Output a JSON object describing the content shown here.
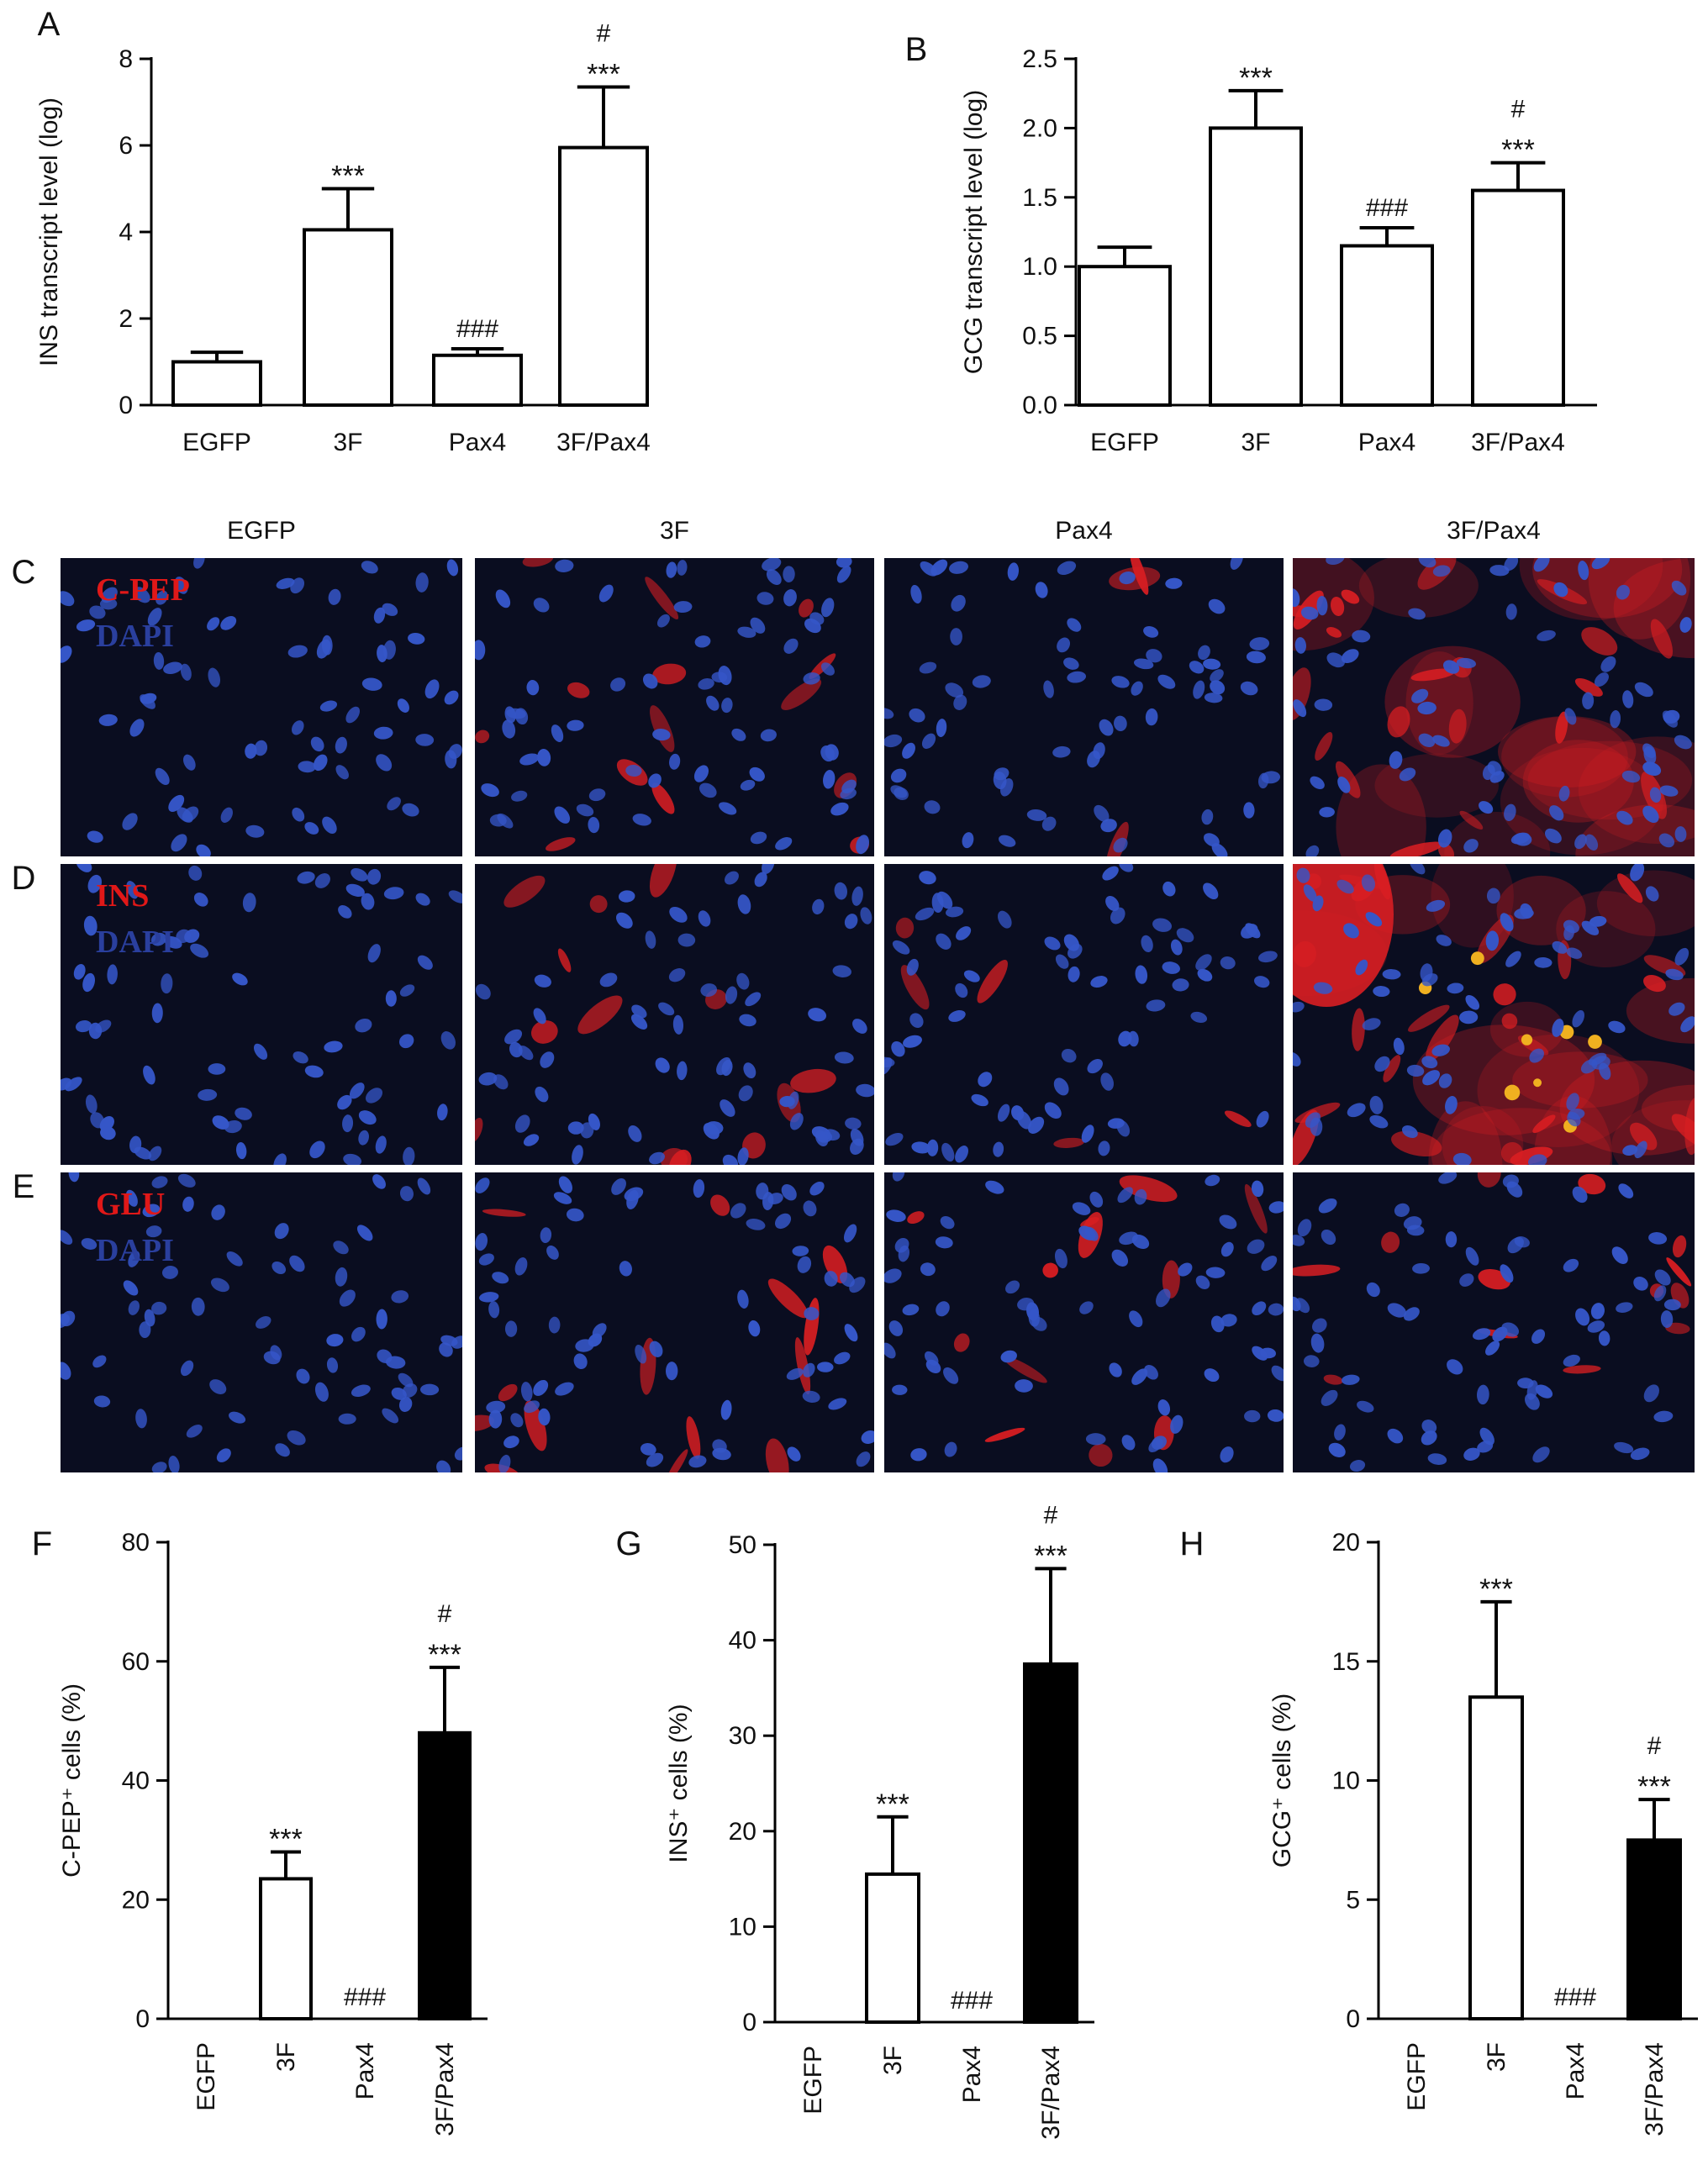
{
  "colors": {
    "bar_open": "#ffffff",
    "bar_filled": "#000000",
    "stroke": "#000000",
    "micro_bg": "#0a0d20",
    "nucleus": "#3556c8",
    "red_stain": "#d81e22",
    "yellow_spot": "#f0b020",
    "label_red": "#e01818",
    "label_blue": "#2a3f9e"
  },
  "column_headers": [
    "EGFP",
    "3F",
    "Pax4",
    "3F/Pax4"
  ],
  "micro_rows": [
    {
      "panel": "C",
      "stain": "C-PEP",
      "counter": "DAPI",
      "red_levels": [
        0.0,
        0.55,
        0.1,
        0.85
      ]
    },
    {
      "panel": "D",
      "stain": "INS",
      "counter": "DAPI",
      "red_levels": [
        0.0,
        0.5,
        0.2,
        1.0
      ]
    },
    {
      "panel": "E",
      "stain": "GLU",
      "counter": "DAPI",
      "red_levels": [
        0.0,
        0.55,
        0.45,
        0.5
      ]
    }
  ],
  "chart_data": [
    {
      "panel": "A",
      "type": "bar",
      "categories": [
        "EGFP",
        "3F",
        "Pax4",
        "3F/Pax4"
      ],
      "values": [
        1.0,
        4.05,
        1.15,
        5.95
      ],
      "errors": [
        0.22,
        0.95,
        0.15,
        1.4
      ],
      "fill": [
        "open",
        "open",
        "open",
        "open"
      ],
      "annotations": [
        [],
        [
          "***"
        ],
        [
          "###"
        ],
        [
          "#",
          "***"
        ]
      ],
      "ylabel": "INS transcript level (log)",
      "ylim": [
        0,
        8
      ],
      "yticks": [
        "0",
        "2",
        "4",
        "6",
        "8"
      ],
      "rotate_xlabels": false
    },
    {
      "panel": "B",
      "type": "bar",
      "categories": [
        "EGFP",
        "3F",
        "Pax4",
        "3F/Pax4"
      ],
      "values": [
        1.0,
        2.0,
        1.15,
        1.55
      ],
      "errors": [
        0.14,
        0.27,
        0.13,
        0.2
      ],
      "fill": [
        "open",
        "open",
        "open",
        "open"
      ],
      "annotations": [
        [],
        [
          "***"
        ],
        [
          "###"
        ],
        [
          "#",
          "***"
        ]
      ],
      "ylabel": "GCG transcript level (log)",
      "ylim": [
        0,
        2.5
      ],
      "yticks": [
        "0.0",
        "0.5",
        "1.0",
        "1.5",
        "2.0",
        "2.5"
      ],
      "rotate_xlabels": false
    },
    {
      "panel": "F",
      "type": "bar",
      "categories": [
        "EGFP",
        "3F",
        "Pax4",
        "3F/Pax4"
      ],
      "values": [
        0,
        23.5,
        0,
        48
      ],
      "errors": [
        0,
        4.5,
        0,
        11
      ],
      "fill": [
        "open",
        "open",
        "open",
        "filled"
      ],
      "annotations": [
        [],
        [
          "***"
        ],
        [
          "###"
        ],
        [
          "#",
          "***"
        ]
      ],
      "ylabel": "C-PEP⁺ cells (%)",
      "ylim": [
        0,
        80
      ],
      "yticks": [
        "0",
        "20",
        "40",
        "60",
        "80"
      ],
      "rotate_xlabels": true
    },
    {
      "panel": "G",
      "type": "bar",
      "categories": [
        "EGFP",
        "3F",
        "Pax4",
        "3F/Pax4"
      ],
      "values": [
        0,
        15.5,
        0,
        37.5
      ],
      "errors": [
        0,
        6,
        0,
        10
      ],
      "fill": [
        "open",
        "open",
        "open",
        "filled"
      ],
      "annotations": [
        [],
        [
          "***"
        ],
        [
          "###"
        ],
        [
          "#",
          "***"
        ]
      ],
      "ylabel": "INS⁺ cells (%)",
      "ylim": [
        0,
        50
      ],
      "yticks": [
        "0",
        "10",
        "20",
        "30",
        "40",
        "50"
      ],
      "rotate_xlabels": true
    },
    {
      "panel": "H",
      "type": "bar",
      "categories": [
        "EGFP",
        "3F",
        "Pax4",
        "3F/Pax4"
      ],
      "values": [
        0,
        13.5,
        0,
        7.5
      ],
      "errors": [
        0,
        4,
        0,
        1.7
      ],
      "fill": [
        "open",
        "open",
        "open",
        "filled"
      ],
      "annotations": [
        [],
        [
          "***"
        ],
        [
          "###"
        ],
        [
          "#",
          "***"
        ]
      ],
      "ylabel": "GCG⁺ cells (%)",
      "ylim": [
        0,
        20
      ],
      "yticks": [
        "0",
        "5",
        "10",
        "15",
        "20"
      ],
      "rotate_xlabels": true
    }
  ]
}
